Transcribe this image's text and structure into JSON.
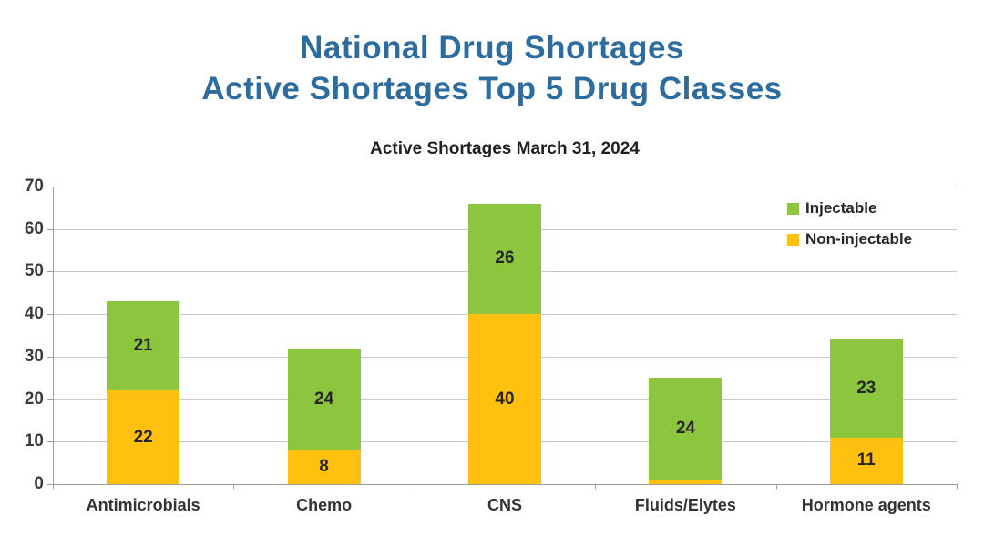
{
  "page": {
    "title_line1": "National Drug Shortages",
    "title_line2": "Active Shortages Top 5 Drug Classes",
    "title_color": "#2D6C9E"
  },
  "chart_data": {
    "type": "bar",
    "stacked": true,
    "title": "Active Shortages March 31, 2024",
    "categories": [
      "Antimicrobials",
      "Chemo",
      "CNS",
      "Fluids/Elytes",
      "Hormone agents"
    ],
    "series": [
      {
        "name": "Non-injectable",
        "color": "#FFC010",
        "values": [
          22,
          8,
          40,
          1,
          11
        ]
      },
      {
        "name": "Injectable",
        "color": "#8CC63F",
        "values": [
          21,
          24,
          26,
          24,
          23
        ]
      }
    ],
    "xlabel": "",
    "ylabel": "",
    "ylim": [
      0,
      70
    ],
    "ytick_interval": 10,
    "ytick_labels": [
      "0",
      "10",
      "20",
      "30",
      "40",
      "50",
      "60",
      "70"
    ],
    "grid": true,
    "legend_position": "top-right",
    "legend_order_top_to_bottom": [
      "Injectable",
      "Non-injectable"
    ]
  }
}
